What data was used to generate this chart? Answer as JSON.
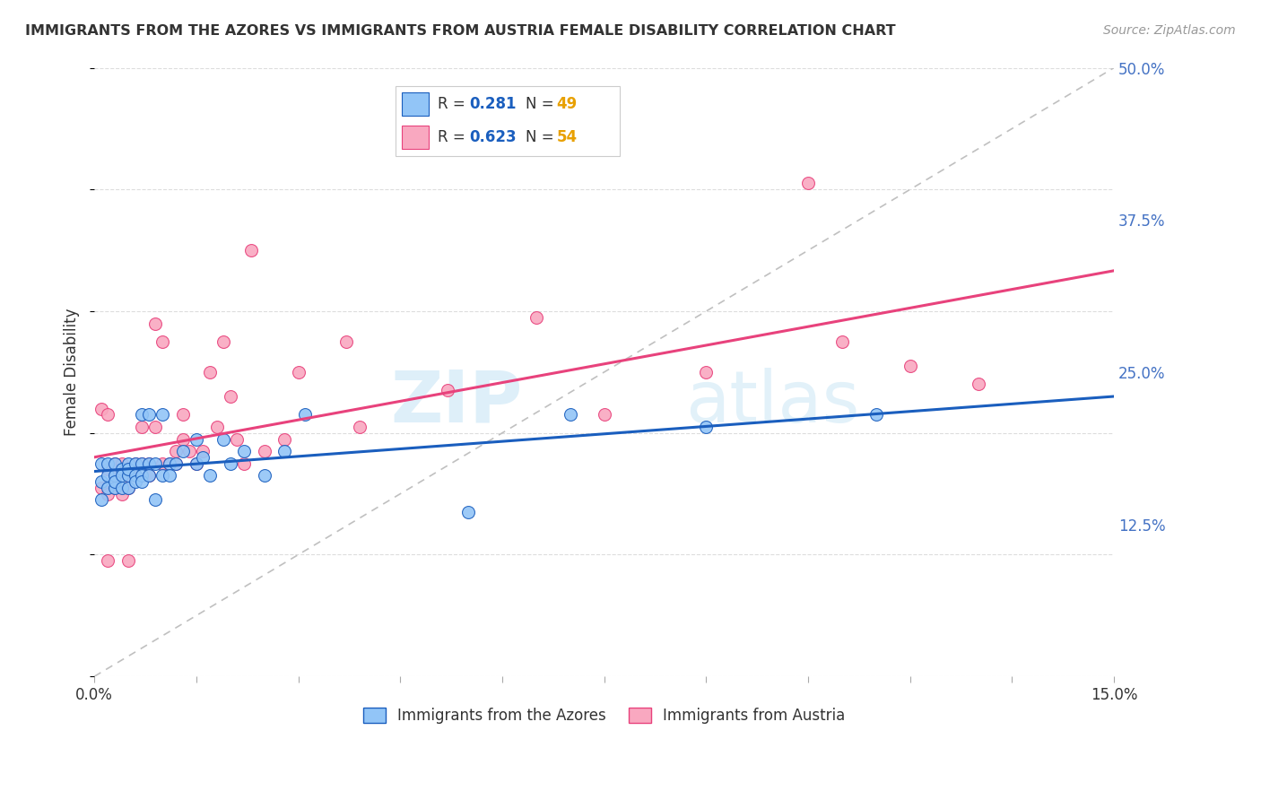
{
  "title": "IMMIGRANTS FROM THE AZORES VS IMMIGRANTS FROM AUSTRIA FEMALE DISABILITY CORRELATION CHART",
  "source": "Source: ZipAtlas.com",
  "ylabel": "Female Disability",
  "xlim": [
    0.0,
    0.15
  ],
  "ylim": [
    0.0,
    0.5
  ],
  "ytick_labels_right": [
    "12.5%",
    "25.0%",
    "37.5%",
    "50.0%"
  ],
  "ytick_positions_right": [
    0.125,
    0.25,
    0.375,
    0.5
  ],
  "legend_bottom1": "Immigrants from the Azores",
  "legend_bottom2": "Immigrants from Austria",
  "color_azores": "#92C5F7",
  "color_austria": "#F9A8C0",
  "line_color_azores": "#1A5EBE",
  "line_color_austria": "#E8427C",
  "diagonal_color": "#C0C0C0",
  "background_color": "#FFFFFF",
  "grid_color": "#DDDDDD",
  "R_azores": 0.281,
  "N_azores": 49,
  "R_austria": 0.623,
  "N_austria": 54,
  "n_value_color": "#E8A000",
  "r_value_color": "#1A5EBE",
  "azores_x": [
    0.001,
    0.001,
    0.001,
    0.002,
    0.002,
    0.002,
    0.003,
    0.003,
    0.003,
    0.003,
    0.004,
    0.004,
    0.004,
    0.005,
    0.005,
    0.005,
    0.005,
    0.006,
    0.006,
    0.006,
    0.007,
    0.007,
    0.007,
    0.007,
    0.008,
    0.008,
    0.008,
    0.009,
    0.009,
    0.01,
    0.01,
    0.011,
    0.011,
    0.012,
    0.013,
    0.015,
    0.015,
    0.016,
    0.017,
    0.019,
    0.02,
    0.022,
    0.025,
    0.028,
    0.031,
    0.055,
    0.07,
    0.09,
    0.115
  ],
  "azores_y": [
    0.175,
    0.16,
    0.145,
    0.175,
    0.165,
    0.155,
    0.175,
    0.165,
    0.155,
    0.16,
    0.17,
    0.165,
    0.155,
    0.175,
    0.165,
    0.155,
    0.17,
    0.175,
    0.165,
    0.16,
    0.215,
    0.175,
    0.165,
    0.16,
    0.215,
    0.175,
    0.165,
    0.175,
    0.145,
    0.215,
    0.165,
    0.175,
    0.165,
    0.175,
    0.185,
    0.195,
    0.175,
    0.18,
    0.165,
    0.195,
    0.175,
    0.185,
    0.165,
    0.185,
    0.215,
    0.135,
    0.215,
    0.205,
    0.215
  ],
  "austria_x": [
    0.001,
    0.001,
    0.002,
    0.002,
    0.002,
    0.002,
    0.003,
    0.003,
    0.003,
    0.004,
    0.004,
    0.004,
    0.005,
    0.005,
    0.005,
    0.005,
    0.006,
    0.006,
    0.007,
    0.007,
    0.008,
    0.008,
    0.009,
    0.009,
    0.01,
    0.01,
    0.011,
    0.012,
    0.012,
    0.013,
    0.013,
    0.014,
    0.015,
    0.016,
    0.017,
    0.018,
    0.019,
    0.02,
    0.021,
    0.022,
    0.023,
    0.025,
    0.028,
    0.03,
    0.037,
    0.039,
    0.052,
    0.065,
    0.075,
    0.09,
    0.105,
    0.11,
    0.12,
    0.13
  ],
  "austria_y": [
    0.155,
    0.22,
    0.15,
    0.17,
    0.215,
    0.095,
    0.155,
    0.175,
    0.165,
    0.15,
    0.17,
    0.175,
    0.17,
    0.165,
    0.155,
    0.095,
    0.165,
    0.175,
    0.175,
    0.205,
    0.165,
    0.175,
    0.205,
    0.29,
    0.175,
    0.275,
    0.175,
    0.185,
    0.175,
    0.195,
    0.215,
    0.185,
    0.175,
    0.185,
    0.25,
    0.205,
    0.275,
    0.23,
    0.195,
    0.175,
    0.35,
    0.185,
    0.195,
    0.25,
    0.275,
    0.205,
    0.235,
    0.295,
    0.215,
    0.25,
    0.405,
    0.275,
    0.255,
    0.24
  ]
}
